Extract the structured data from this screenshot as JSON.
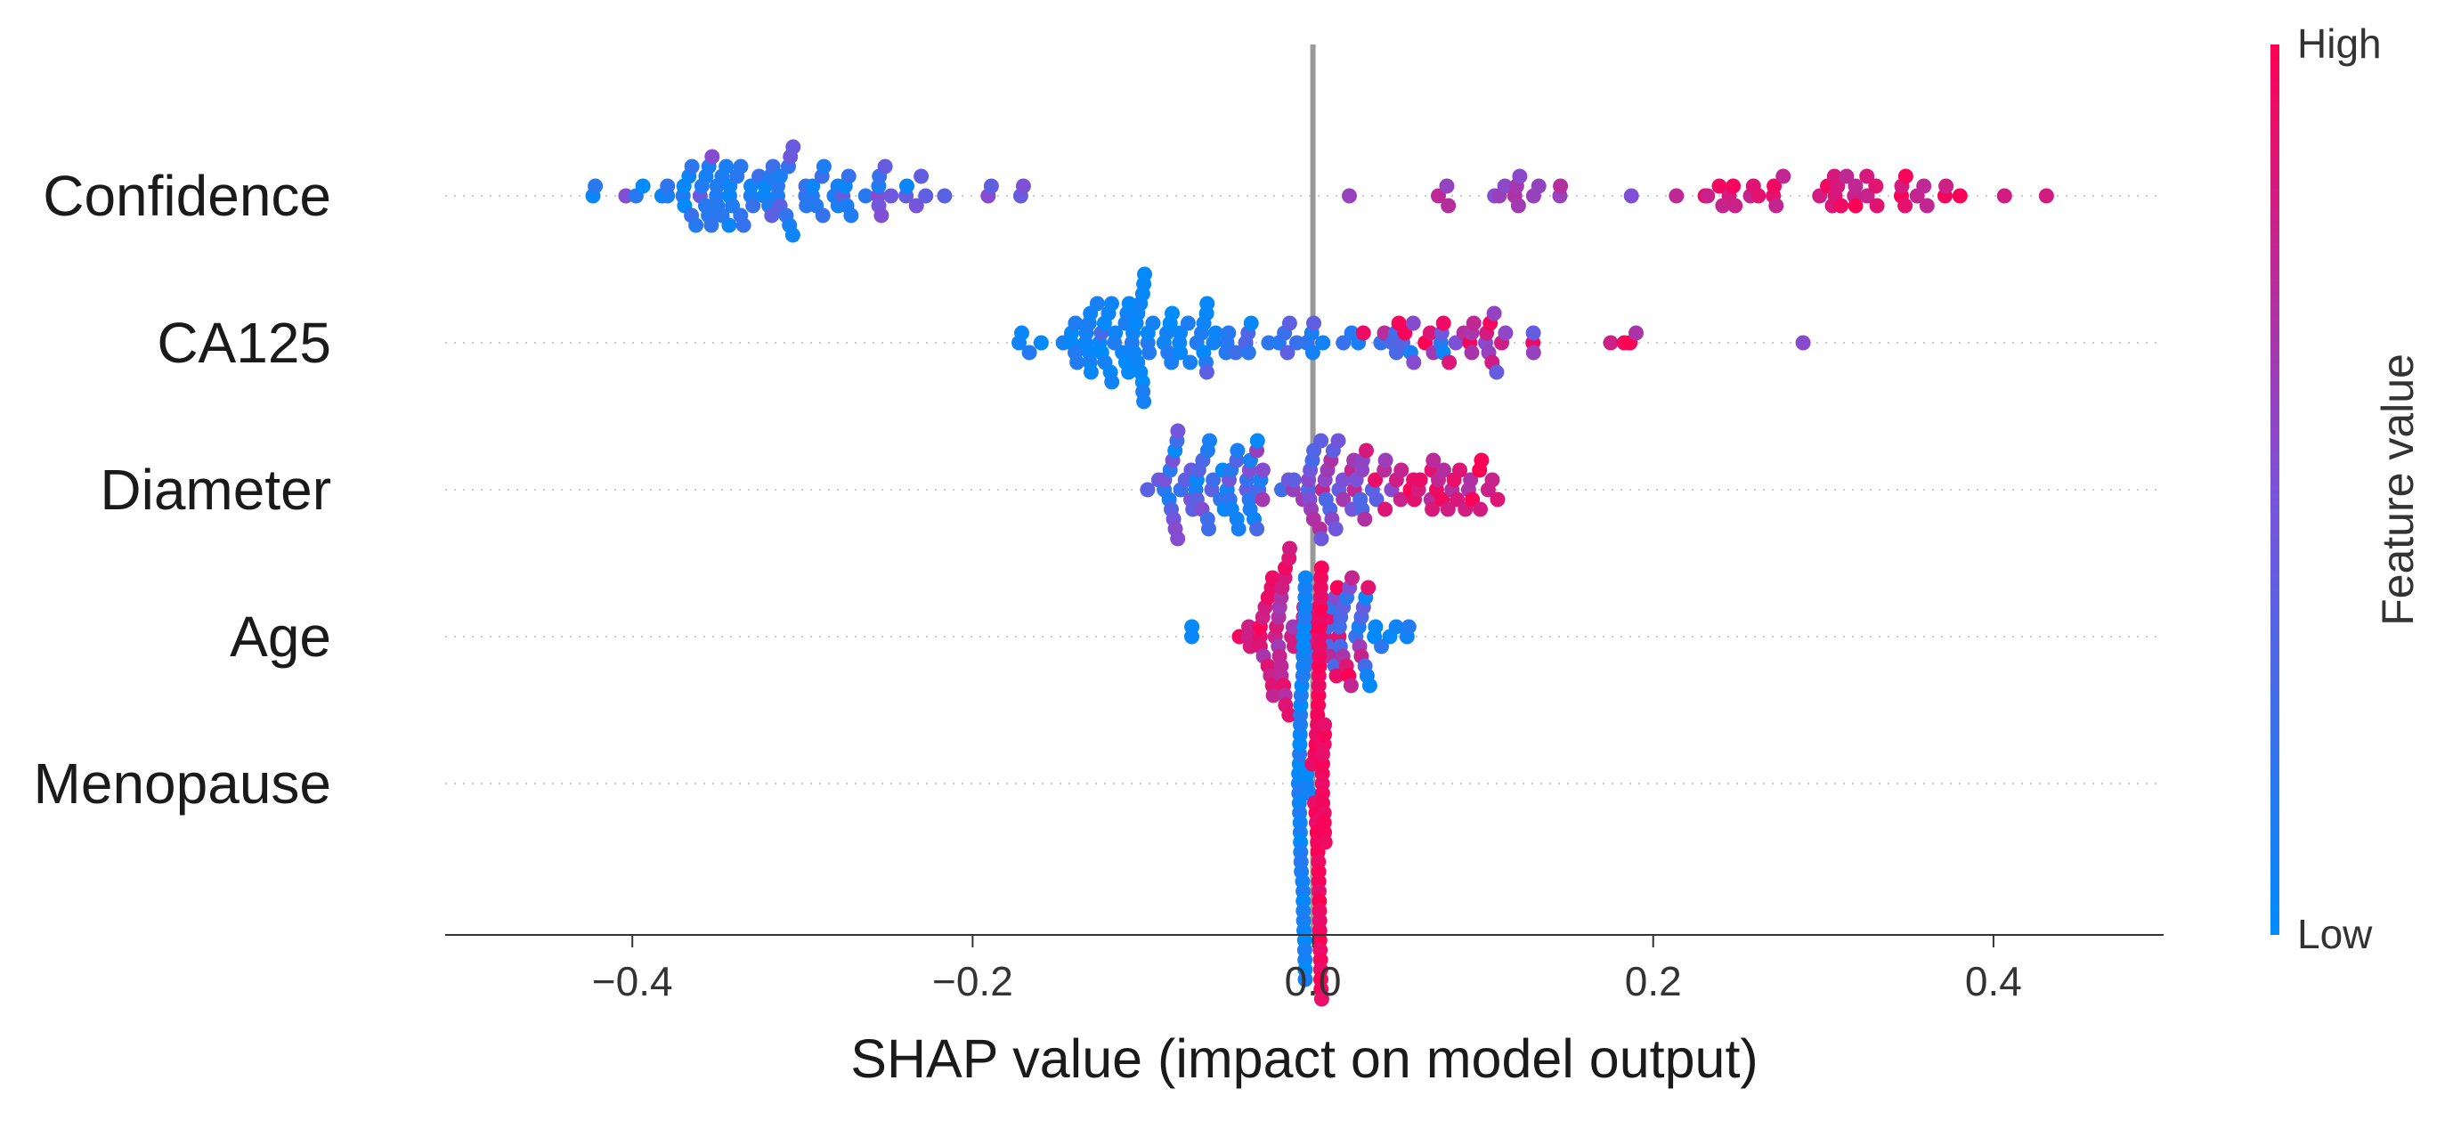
{
  "chart_data": {
    "type": "scatter",
    "subtype": "shap-beeswarm",
    "xlabel": "SHAP value (impact on model output)",
    "xlim": [
      -0.51,
      0.5
    ],
    "xticks": [
      -0.4,
      -0.2,
      0.0,
      0.2,
      0.4
    ],
    "xtick_labels": [
      "−0.4",
      "−0.2",
      "0.0",
      "0.2",
      "0.4"
    ],
    "zero_line_value": 0.0,
    "grid": "dotted-per-feature",
    "features": [
      "Confidence",
      "CA125",
      "Diameter",
      "Age",
      "Menopause"
    ],
    "colorbar": {
      "label": "Feature value",
      "high_label": "High",
      "low_label": "Low",
      "low_color": "#008bfb",
      "mid_color": "#7b52d9",
      "high_color": "#ff0052"
    },
    "approx_samples_per_feature": 150,
    "series": [
      {
        "feature": "Confidence",
        "clusters": [
          {
            "center": -0.33,
            "spread": 0.07,
            "n": 70,
            "color_low": 0.0,
            "color_high": 0.25
          },
          {
            "center": -0.25,
            "spread": 0.08,
            "n": 22,
            "color_low": 0.35,
            "color_high": 0.55
          },
          {
            "center": 0.12,
            "spread": 0.06,
            "n": 16,
            "color_low": 0.5,
            "color_high": 0.75
          },
          {
            "center": 0.3,
            "spread": 0.1,
            "n": 42,
            "color_low": 0.75,
            "color_high": 1.0
          }
        ]
      },
      {
        "feature": "CA125",
        "clusters": [
          {
            "center": -0.1,
            "spread": 0.05,
            "n": 72,
            "color_low": 0.0,
            "color_high": 0.15
          },
          {
            "center": 0.0,
            "spread": 0.08,
            "n": 32,
            "color_low": 0.05,
            "color_high": 0.4
          },
          {
            "center": 0.1,
            "spread": 0.06,
            "n": 30,
            "color_low": 0.4,
            "color_high": 1.0
          },
          {
            "center": 0.19,
            "spread": 0.02,
            "n": 4,
            "color_low": 0.6,
            "color_high": 1.0
          },
          {
            "center": 0.288,
            "spread": 0.001,
            "n": 1,
            "color_low": 0.55,
            "color_high": 0.55
          }
        ]
      },
      {
        "feature": "Diameter",
        "clusters": [
          {
            "center": -0.06,
            "spread": 0.035,
            "n": 55,
            "color_low": 0.0,
            "color_high": 0.55
          },
          {
            "center": 0.01,
            "spread": 0.03,
            "n": 45,
            "color_low": 0.25,
            "color_high": 0.8
          },
          {
            "center": 0.07,
            "spread": 0.045,
            "n": 35,
            "color_low": 0.65,
            "color_high": 1.0
          }
        ]
      },
      {
        "feature": "Age",
        "clusters": [
          {
            "center": -0.02,
            "spread": 0.02,
            "n": 40,
            "color_low": 0.6,
            "color_high": 1.0
          },
          {
            "center": 0.01,
            "spread": 0.02,
            "n": 40,
            "color_low": 0.1,
            "color_high": 1.0
          },
          {
            "center": 0.045,
            "spread": 0.015,
            "n": 10,
            "color_low": 0.0,
            "color_high": 0.2
          },
          {
            "center": -0.07,
            "spread": 0.003,
            "n": 2,
            "color_low": 0.0,
            "color_high": 0.05
          }
        ]
      },
      {
        "feature": "Menopause",
        "clusters": [
          {
            "center": -0.006,
            "spread": 0.003,
            "n": 45,
            "color_low": 0.0,
            "color_high": 0.15
          },
          {
            "center": 0.004,
            "spread": 0.003,
            "n": 55,
            "color_low": 0.9,
            "color_high": 1.0
          }
        ]
      }
    ]
  }
}
